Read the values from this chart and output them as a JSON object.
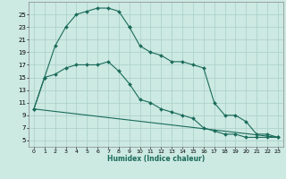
{
  "xlabel": "Humidex (Indice chaleur)",
  "xlim": [
    -0.5,
    23.5
  ],
  "ylim": [
    4,
    27
  ],
  "xticks": [
    0,
    1,
    2,
    3,
    4,
    5,
    6,
    7,
    8,
    9,
    10,
    11,
    12,
    13,
    14,
    15,
    16,
    17,
    18,
    19,
    20,
    21,
    22,
    23
  ],
  "yticks": [
    5,
    7,
    9,
    11,
    13,
    15,
    17,
    19,
    21,
    23,
    25
  ],
  "bg_color": "#cce9e2",
  "grid_color": "#a8cfc7",
  "line_color": "#1a6b5a",
  "curve1_x": [
    0,
    1,
    2,
    3,
    4,
    5,
    6,
    7,
    8,
    9
  ],
  "curve1_y": [
    10,
    15,
    20,
    23,
    25,
    25.5,
    26,
    26,
    25.5,
    23
  ],
  "curve2_x": [
    9,
    10,
    11,
    12,
    13,
    14,
    15,
    16,
    17,
    18,
    19,
    20,
    21,
    22,
    23
  ],
  "curve2_y": [
    23,
    20,
    19,
    18.5,
    17.5,
    17.5,
    17,
    16.5,
    11,
    9,
    9,
    8,
    6,
    6,
    5.5
  ],
  "curve3_x": [
    0,
    1,
    2,
    3,
    4,
    5,
    6,
    7,
    8,
    9,
    10,
    11,
    12,
    13,
    14,
    15,
    16,
    17,
    18,
    19,
    20,
    21,
    22,
    23
  ],
  "curve3_y": [
    10,
    15,
    15.5,
    16.5,
    17,
    17,
    17,
    17.5,
    16,
    14,
    11.5,
    11,
    10,
    9.5,
    9,
    8.5,
    7,
    6.5,
    6,
    6,
    5.5,
    5.5,
    5.5,
    5.5
  ],
  "line4_x": [
    0,
    23
  ],
  "line4_y": [
    10,
    5.5
  ]
}
